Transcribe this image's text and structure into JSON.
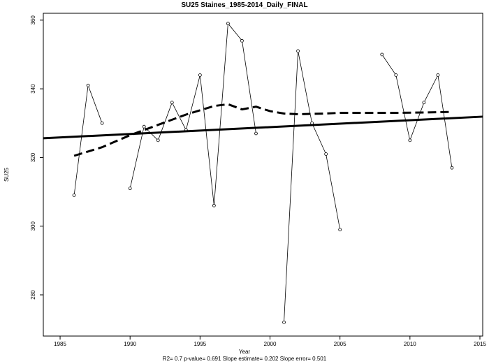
{
  "chart_data": {
    "type": "line",
    "title": "SU25   Staines_1985-2014_Daily_FINAL",
    "xlabel": "Year",
    "ylabel": "SU25",
    "xlim": [
      1983.8,
      2015.2
    ],
    "ylim": [
      268,
      362
    ],
    "x_ticks": [
      1985,
      1990,
      1995,
      2000,
      2005,
      2010,
      2015
    ],
    "y_ticks": [
      280,
      300,
      320,
      340,
      360
    ],
    "grid": false,
    "legend": "none",
    "stats_text": "R2= 0.7  p-value= 0.691  Slope estimate= 0.202  Slope error= 0.501",
    "series": [
      {
        "style": "thin line with open circle markers",
        "segments": [
          [
            [
              1986,
              309
            ],
            [
              1987,
              341
            ],
            [
              1988,
              330
            ]
          ],
          [
            [
              1990,
              311
            ],
            [
              1991,
              329
            ],
            [
              1992,
              325
            ],
            [
              1993,
              336
            ],
            [
              1994,
              328
            ],
            [
              1995,
              344
            ],
            [
              1996,
              306
            ],
            [
              1997,
              359
            ],
            [
              1998,
              354
            ],
            [
              1999,
              327
            ]
          ],
          [
            [
              2001,
              272
            ],
            [
              2002,
              351
            ],
            [
              2003,
              330
            ],
            [
              2004,
              321
            ],
            [
              2005,
              299
            ]
          ],
          [
            [
              2008,
              350
            ],
            [
              2009,
              344
            ],
            [
              2010,
              325
            ],
            [
              2011,
              336
            ],
            [
              2012,
              344
            ],
            [
              2013,
              317
            ]
          ]
        ]
      },
      {
        "style": "thick dashed smoothed trend",
        "points": [
          [
            1986,
            320.5
          ],
          [
            1988,
            323
          ],
          [
            1990,
            326.5
          ],
          [
            1992,
            329.5
          ],
          [
            1994,
            332.5
          ],
          [
            1996,
            335
          ],
          [
            1997,
            335.5
          ],
          [
            1998,
            334
          ],
          [
            1999,
            334.8
          ],
          [
            2000,
            333.5
          ],
          [
            2001,
            332.8
          ],
          [
            2002,
            332.6
          ],
          [
            2003,
            332.7
          ],
          [
            2004,
            332.8
          ],
          [
            2005,
            333
          ],
          [
            2007,
            333
          ],
          [
            2009,
            333
          ],
          [
            2011,
            333.1
          ],
          [
            2013,
            333.3
          ]
        ]
      },
      {
        "style": "thick solid linear trend",
        "points": [
          [
            1983.8,
            325.6
          ],
          [
            2015.2,
            331.9
          ]
        ]
      }
    ]
  }
}
